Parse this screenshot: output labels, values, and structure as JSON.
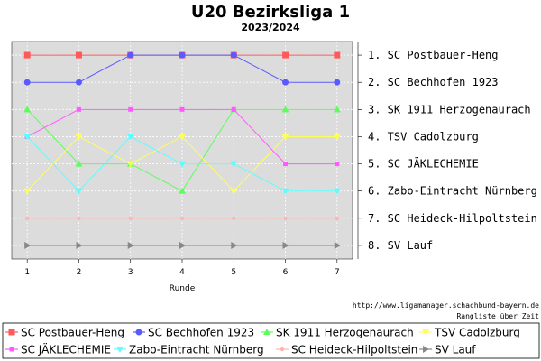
{
  "chart_data": {
    "type": "line",
    "title": "U20 Bezirksliga 1",
    "subtitle": "2023/2024",
    "xlabel": "Runde",
    "ylabel": "",
    "x": [
      1,
      2,
      3,
      4,
      5,
      6,
      7
    ],
    "ylim": [
      0.5,
      8.5
    ],
    "y_inverted": true,
    "grid": true,
    "legend_position": "bottom",
    "series": [
      {
        "name": "SC Postbauer-Heng",
        "color": "#ff5a5a",
        "marker": "square",
        "values": [
          1,
          1,
          1,
          1,
          1,
          1,
          1
        ]
      },
      {
        "name": "SC Bechhofen 1923",
        "color": "#5a5aff",
        "marker": "circle",
        "values": [
          2,
          2,
          1,
          1,
          1,
          2,
          2
        ]
      },
      {
        "name": "SK 1911 Herzogenaurach",
        "color": "#5aff5a",
        "marker": "triangle",
        "values": [
          3,
          5,
          5,
          6,
          3,
          3,
          3
        ]
      },
      {
        "name": "TSV Cadolzburg",
        "color": "#ffff5a",
        "marker": "triangle-down",
        "values": [
          6,
          4,
          5,
          4,
          6,
          4,
          4
        ]
      },
      {
        "name": "SC JÄKLECHEMIE",
        "color": "#ff5aff",
        "marker": "square-small",
        "values": [
          4,
          3,
          3,
          3,
          3,
          5,
          5
        ]
      },
      {
        "name": "Zabo-Eintracht Nürnberg",
        "color": "#5affff",
        "marker": "triangle-down",
        "values": [
          4,
          6,
          4,
          5,
          5,
          6,
          6
        ]
      },
      {
        "name": "SC Heideck-Hilpoltstein",
        "color": "#ffb4b4",
        "marker": "dot",
        "values": [
          7,
          7,
          7,
          7,
          7,
          7,
          7
        ]
      },
      {
        "name": "SV Lauf",
        "color": "#888888",
        "marker": "triangle-right",
        "values": [
          8,
          8,
          8,
          8,
          8,
          8,
          8
        ]
      }
    ],
    "ranking": [
      "1. SC Postbauer-Heng",
      "2. SC Bechhofen 1923",
      "3. SK 1911 Herzogenaurach",
      "4. TSV Cadolzburg",
      "5. SC JÄKLECHEMIE",
      "6. Zabo-Eintracht Nürnberg",
      "7. SC Heideck-Hilpoltstein",
      "8. SV Lauf"
    ]
  },
  "credit": {
    "url": "http://www.ligamanager.schachbund-bayern.de",
    "caption": "Rangliste über Zeit"
  }
}
